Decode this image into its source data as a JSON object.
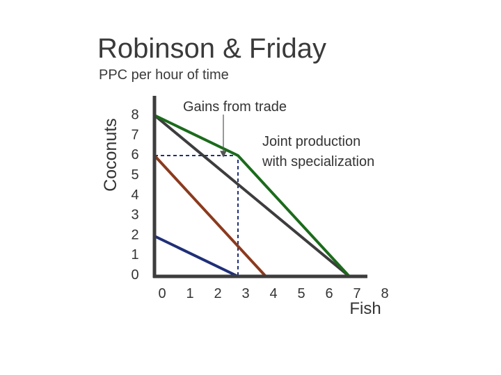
{
  "slide": {
    "title": "Robinson & Friday",
    "subtitle": "PPC per hour of time"
  },
  "chart_data": {
    "type": "line",
    "xlabel": "Fish",
    "ylabel": "Coconuts",
    "x_ticks": [
      "0",
      "1",
      "2",
      "3",
      "4",
      "5",
      "6",
      "7",
      "8"
    ],
    "y_ticks": [
      "0",
      "1",
      "2",
      "3",
      "4",
      "5",
      "6",
      "7",
      "8"
    ],
    "xlim": [
      0,
      8
    ],
    "ylim": [
      0,
      8
    ],
    "grid": false,
    "series": [
      {
        "color": "#1f2f78",
        "points": [
          [
            0,
            2
          ],
          [
            3,
            0
          ]
        ]
      },
      {
        "color": "#8b3a1e",
        "points": [
          [
            0,
            6
          ],
          [
            4,
            0
          ]
        ]
      },
      {
        "color": "#3d3d3d",
        "points": [
          [
            0,
            8
          ],
          [
            7,
            0
          ]
        ]
      },
      {
        "color": "#1b6b1b",
        "points": [
          [
            0,
            8
          ],
          [
            3,
            6
          ],
          [
            7,
            0
          ]
        ]
      }
    ],
    "reference_lines": [
      {
        "style": "dashed",
        "color": "#1f2f78",
        "points": [
          [
            0,
            6
          ],
          [
            3,
            6
          ],
          [
            3,
            0
          ]
        ]
      }
    ],
    "annotations": [
      {
        "id": "gains-label",
        "text": "Gains from trade",
        "arrow_to": [
          2.5,
          6
        ]
      },
      {
        "id": "joint-label",
        "lines": [
          "Joint production",
          "with specialization"
        ]
      }
    ]
  }
}
